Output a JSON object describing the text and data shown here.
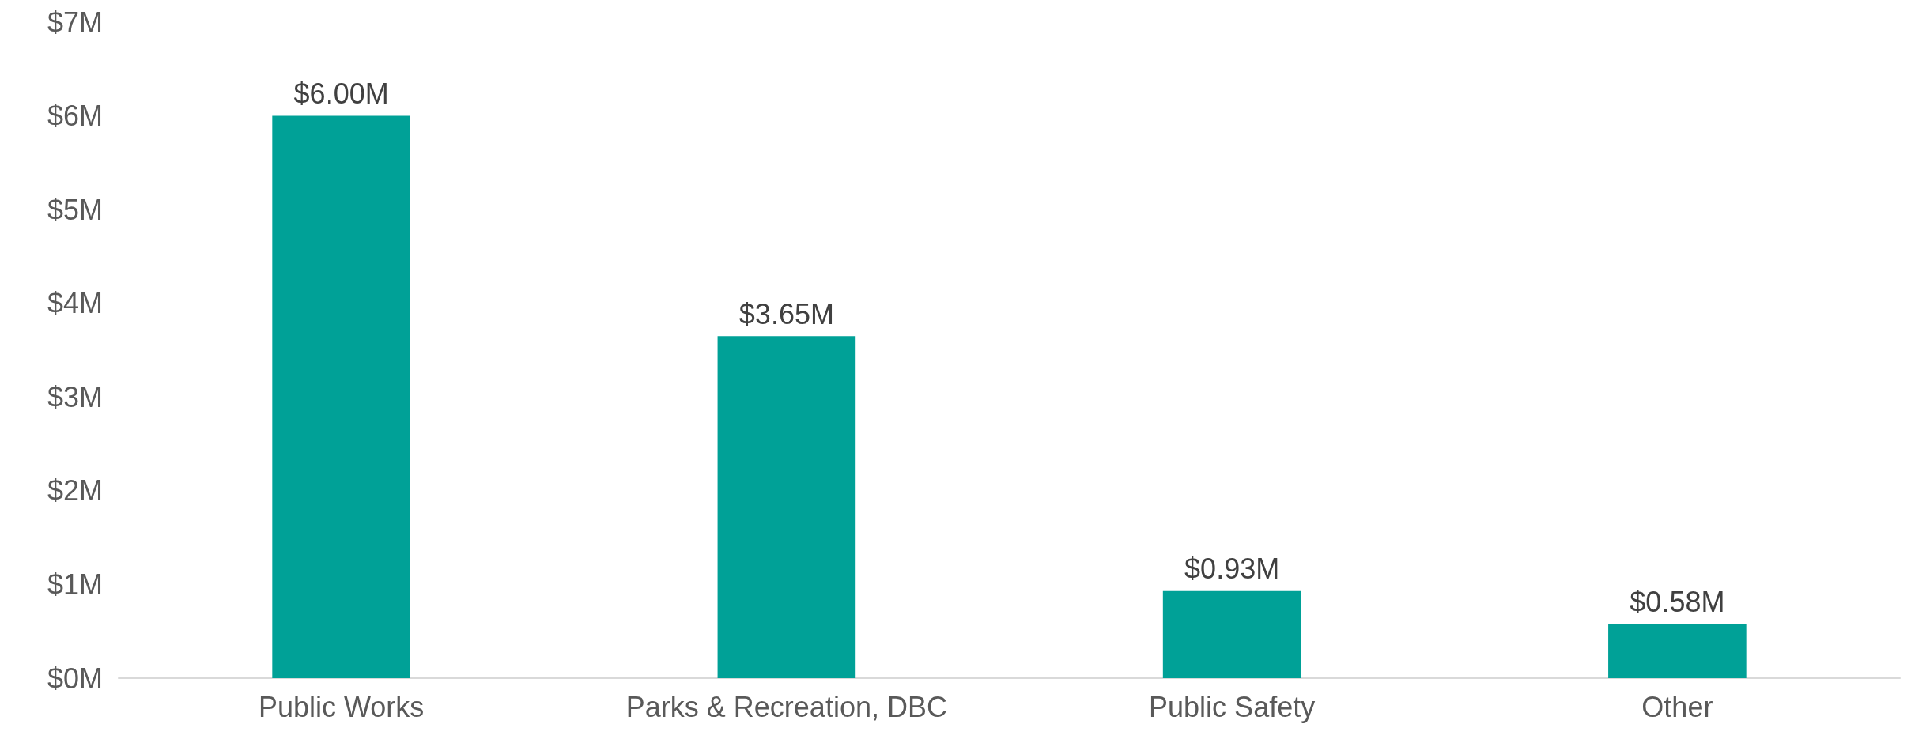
{
  "chart_data": {
    "type": "bar",
    "categories": [
      "Public Works",
      "Parks & Recreation, DBC",
      "Public Safety",
      "Other"
    ],
    "values": [
      6.0,
      3.65,
      0.93,
      0.58
    ],
    "value_labels": [
      "$6.00M",
      "$3.65M",
      "$0.93M",
      "$0.58M"
    ],
    "color": "#00a197",
    "ylim": [
      0,
      7
    ],
    "yticks": [
      {
        "value": 0,
        "label": "$0M"
      },
      {
        "value": 1,
        "label": "$1M"
      },
      {
        "value": 2,
        "label": "$2M"
      },
      {
        "value": 3,
        "label": "$3M"
      },
      {
        "value": 4,
        "label": "$4M"
      },
      {
        "value": 5,
        "label": "$5M"
      },
      {
        "value": 6,
        "label": "$6M"
      },
      {
        "value": 7,
        "label": "$7M"
      }
    ],
    "grid": false
  }
}
